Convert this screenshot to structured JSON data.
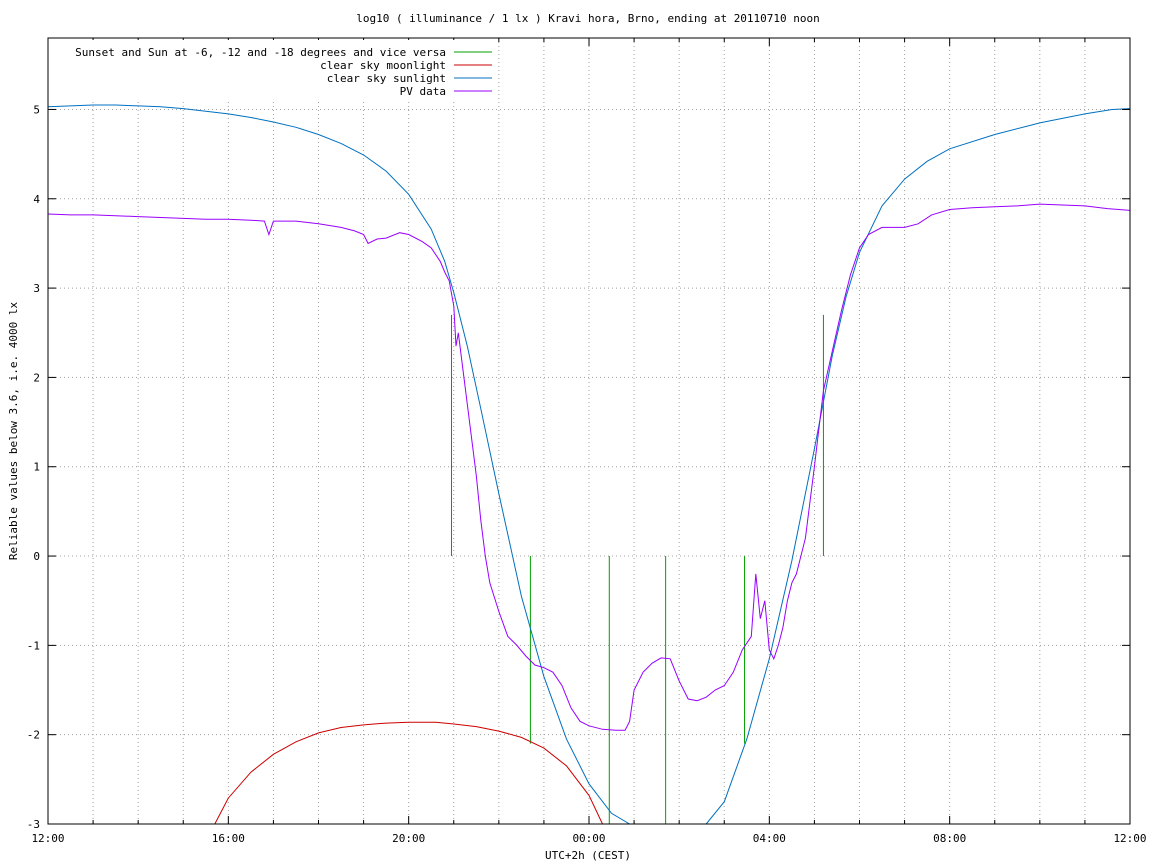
{
  "chart_data": {
    "type": "line",
    "title": "log10 ( illuminance / 1 lx ) Kravi hora, Brno, ending at 20110710 noon",
    "xlabel": "UTC+2h (CEST)",
    "ylabel": "Reliable values below 3.6, i.e. 4000 lx",
    "x_unit": "hours since 12:00 (local)",
    "xlim": [
      0,
      24
    ],
    "ylim": [
      -3,
      5.8
    ],
    "x_tick_labels": [
      "12:00",
      "16:00",
      "20:00",
      "00:00",
      "04:00",
      "08:00",
      "12:00"
    ],
    "x_tick_values": [
      0,
      4,
      8,
      12,
      16,
      20,
      24
    ],
    "y_tick_labels": [
      "-3",
      "-2",
      "-1",
      "0",
      "1",
      "2",
      "3",
      "4",
      "5"
    ],
    "y_tick_values": [
      -3,
      -2,
      -1,
      0,
      1,
      2,
      3,
      4,
      5
    ],
    "grid": true,
    "legend_position": "top-left",
    "series": [
      {
        "name": "Sunset and Sun at -6, -12 and -18 degrees and vice versa",
        "color": "#00a000",
        "kind": "vertical-markers",
        "segments": [
          {
            "x": 8.95,
            "y0": 0,
            "y1": 2.7
          },
          {
            "x": 10.7,
            "y0": -2.1,
            "y1": 0
          },
          {
            "x": 12.45,
            "y0": -3,
            "y1": 0
          },
          {
            "x": 13.7,
            "y0": -3,
            "y1": 0
          },
          {
            "x": 15.45,
            "y0": -2.1,
            "y1": 0
          },
          {
            "x": 17.2,
            "y0": 0,
            "y1": 2.7
          }
        ]
      },
      {
        "name": "clear sky moonlight",
        "color": "#cc0000",
        "points": [
          [
            3.7,
            -3
          ],
          [
            4.0,
            -2.71
          ],
          [
            4.5,
            -2.42
          ],
          [
            5.0,
            -2.22
          ],
          [
            5.5,
            -2.08
          ],
          [
            6.0,
            -1.98
          ],
          [
            6.5,
            -1.92
          ],
          [
            7.0,
            -1.89
          ],
          [
            7.5,
            -1.87
          ],
          [
            8.0,
            -1.86
          ],
          [
            8.3,
            -1.86
          ],
          [
            8.6,
            -1.86
          ],
          [
            9.0,
            -1.88
          ],
          [
            9.5,
            -1.91
          ],
          [
            10.0,
            -1.96
          ],
          [
            10.5,
            -2.03
          ],
          [
            11.0,
            -2.15
          ],
          [
            11.5,
            -2.35
          ],
          [
            12.0,
            -2.68
          ],
          [
            12.3,
            -3
          ]
        ]
      },
      {
        "name": "clear sky sunlight",
        "color": "#0070c0",
        "points": [
          [
            0,
            5.03
          ],
          [
            0.5,
            5.04
          ],
          [
            1.0,
            5.05
          ],
          [
            1.5,
            5.05
          ],
          [
            2.0,
            5.04
          ],
          [
            2.5,
            5.03
          ],
          [
            3.0,
            5.01
          ],
          [
            3.5,
            4.98
          ],
          [
            4.0,
            4.95
          ],
          [
            4.5,
            4.91
          ],
          [
            5.0,
            4.86
          ],
          [
            5.5,
            4.8
          ],
          [
            6.0,
            4.72
          ],
          [
            6.5,
            4.62
          ],
          [
            7.0,
            4.49
          ],
          [
            7.5,
            4.31
          ],
          [
            8.0,
            4.05
          ],
          [
            8.5,
            3.66
          ],
          [
            8.8,
            3.3
          ],
          [
            9.0,
            2.95
          ],
          [
            9.3,
            2.35
          ],
          [
            9.6,
            1.65
          ],
          [
            10.0,
            0.7
          ],
          [
            10.5,
            -0.45
          ],
          [
            11.0,
            -1.35
          ],
          [
            11.5,
            -2.05
          ],
          [
            12.0,
            -2.55
          ],
          [
            12.5,
            -2.88
          ],
          [
            12.9,
            -3
          ],
          [
            14.6,
            -3
          ],
          [
            15.0,
            -2.75
          ],
          [
            15.5,
            -2.05
          ],
          [
            16.0,
            -1.15
          ],
          [
            16.5,
            -0.05
          ],
          [
            17.0,
            1.2
          ],
          [
            17.4,
            2.25
          ],
          [
            17.7,
            2.9
          ],
          [
            18.0,
            3.4
          ],
          [
            18.5,
            3.92
          ],
          [
            19.0,
            4.22
          ],
          [
            19.5,
            4.42
          ],
          [
            20.0,
            4.56
          ],
          [
            21.0,
            4.72
          ],
          [
            22.0,
            4.85
          ],
          [
            23.0,
            4.95
          ],
          [
            23.6,
            5.0
          ],
          [
            24,
            5.01
          ]
        ]
      },
      {
        "name": "PV data",
        "color": "#9900ff",
        "points": [
          [
            0,
            3.83
          ],
          [
            0.5,
            3.82
          ],
          [
            1.0,
            3.82
          ],
          [
            1.5,
            3.81
          ],
          [
            2.0,
            3.8
          ],
          [
            2.5,
            3.79
          ],
          [
            3.0,
            3.78
          ],
          [
            3.5,
            3.77
          ],
          [
            4.0,
            3.77
          ],
          [
            4.5,
            3.76
          ],
          [
            4.8,
            3.75
          ],
          [
            4.9,
            3.6
          ],
          [
            5.0,
            3.75
          ],
          [
            5.5,
            3.75
          ],
          [
            6.0,
            3.72
          ],
          [
            6.5,
            3.68
          ],
          [
            6.8,
            3.64
          ],
          [
            7.0,
            3.6
          ],
          [
            7.1,
            3.5
          ],
          [
            7.3,
            3.55
          ],
          [
            7.5,
            3.56
          ],
          [
            7.8,
            3.62
          ],
          [
            8.0,
            3.6
          ],
          [
            8.3,
            3.52
          ],
          [
            8.5,
            3.45
          ],
          [
            8.7,
            3.3
          ],
          [
            8.8,
            3.18
          ],
          [
            8.9,
            3.08
          ],
          [
            9.0,
            2.8
          ],
          [
            9.05,
            2.35
          ],
          [
            9.1,
            2.5
          ],
          [
            9.2,
            2.1
          ],
          [
            9.3,
            1.7
          ],
          [
            9.4,
            1.3
          ],
          [
            9.5,
            0.9
          ],
          [
            9.6,
            0.4
          ],
          [
            9.7,
            0.0
          ],
          [
            9.8,
            -0.3
          ],
          [
            10.0,
            -0.62
          ],
          [
            10.2,
            -0.9
          ],
          [
            10.4,
            -1.0
          ],
          [
            10.6,
            -1.12
          ],
          [
            10.8,
            -1.22
          ],
          [
            11.0,
            -1.25
          ],
          [
            11.2,
            -1.3
          ],
          [
            11.4,
            -1.45
          ],
          [
            11.6,
            -1.7
          ],
          [
            11.8,
            -1.85
          ],
          [
            12.0,
            -1.9
          ],
          [
            12.3,
            -1.94
          ],
          [
            12.6,
            -1.95
          ],
          [
            12.8,
            -1.95
          ],
          [
            12.9,
            -1.85
          ],
          [
            13.0,
            -1.5
          ],
          [
            13.2,
            -1.3
          ],
          [
            13.4,
            -1.2
          ],
          [
            13.6,
            -1.14
          ],
          [
            13.8,
            -1.15
          ],
          [
            14.0,
            -1.4
          ],
          [
            14.2,
            -1.6
          ],
          [
            14.4,
            -1.62
          ],
          [
            14.6,
            -1.58
          ],
          [
            14.8,
            -1.5
          ],
          [
            15.0,
            -1.45
          ],
          [
            15.2,
            -1.3
          ],
          [
            15.4,
            -1.05
          ],
          [
            15.6,
            -0.9
          ],
          [
            15.7,
            -0.2
          ],
          [
            15.8,
            -0.7
          ],
          [
            15.9,
            -0.5
          ],
          [
            16.0,
            -1.05
          ],
          [
            16.1,
            -1.15
          ],
          [
            16.2,
            -1.0
          ],
          [
            16.3,
            -0.8
          ],
          [
            16.4,
            -0.5
          ],
          [
            16.5,
            -0.3
          ],
          [
            16.6,
            -0.2
          ],
          [
            16.8,
            0.2
          ],
          [
            17.0,
            1.0
          ],
          [
            17.2,
            1.85
          ],
          [
            17.4,
            2.3
          ],
          [
            17.6,
            2.75
          ],
          [
            17.8,
            3.15
          ],
          [
            18.0,
            3.45
          ],
          [
            18.2,
            3.6
          ],
          [
            18.5,
            3.68
          ],
          [
            19.0,
            3.68
          ],
          [
            19.3,
            3.72
          ],
          [
            19.6,
            3.82
          ],
          [
            20.0,
            3.88
          ],
          [
            20.5,
            3.9
          ],
          [
            21.0,
            3.91
          ],
          [
            21.5,
            3.92
          ],
          [
            22.0,
            3.94
          ],
          [
            22.5,
            3.93
          ],
          [
            23.0,
            3.92
          ],
          [
            23.5,
            3.89
          ],
          [
            24,
            3.87
          ]
        ]
      }
    ]
  }
}
